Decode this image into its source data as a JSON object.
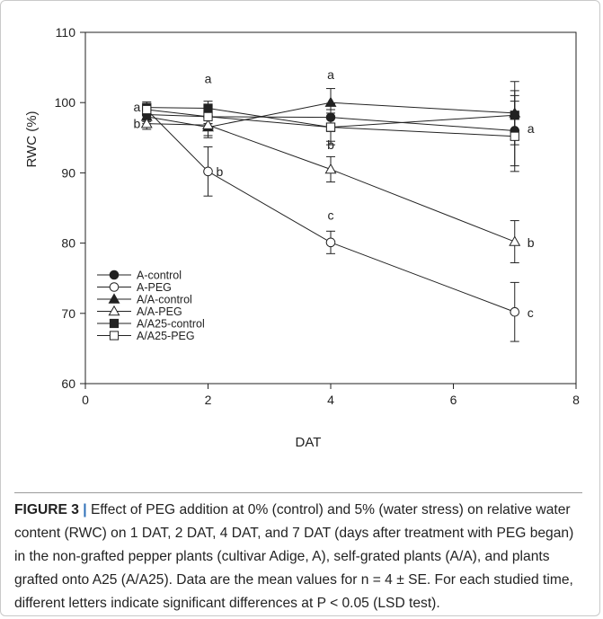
{
  "chart_data": {
    "type": "line",
    "title": "",
    "xlabel": "DAT",
    "ylabel": "RWC (%)",
    "xlim": [
      0,
      8
    ],
    "ylim": [
      60,
      110
    ],
    "x_ticks": [
      "0",
      "2",
      "4",
      "6",
      "8"
    ],
    "y_ticks": [
      "60",
      "70",
      "80",
      "90",
      "100",
      "110"
    ],
    "grid": false,
    "legend_position": "lower-left",
    "x": [
      1,
      2,
      4,
      7
    ],
    "series": [
      {
        "name": "A-control",
        "marker": "filled-circle",
        "values": [
          98.3,
          98.0,
          97.9,
          96.0
        ],
        "errors": [
          1.0,
          1.0,
          2.0,
          5.0
        ]
      },
      {
        "name": "A-PEG",
        "marker": "open-circle",
        "values": [
          99.0,
          90.2,
          80.1,
          70.2
        ],
        "errors": [
          0.8,
          3.5,
          1.6,
          4.2
        ]
      },
      {
        "name": "A/A-control",
        "marker": "filled-triangle",
        "values": [
          98.0,
          96.5,
          100.0,
          98.5
        ],
        "errors": [
          1.0,
          1.5,
          2.0,
          4.5
        ]
      },
      {
        "name": "A/A-PEG",
        "marker": "open-triangle",
        "values": [
          97.0,
          96.8,
          90.5,
          80.2
        ],
        "errors": [
          0.8,
          1.5,
          1.8,
          3.0
        ]
      },
      {
        "name": "A/A25-control",
        "marker": "filled-square",
        "values": [
          99.3,
          99.2,
          96.5,
          98.2
        ],
        "errors": [
          0.8,
          1.0,
          2.5,
          3.5
        ]
      },
      {
        "name": "A/A25-PEG",
        "marker": "open-square",
        "values": [
          99.0,
          98.0,
          96.5,
          95.2
        ],
        "errors": [
          0.8,
          1.0,
          2.0,
          5.0
        ]
      }
    ],
    "annotations": [
      {
        "text": "a",
        "x": 1,
        "y": 99.4
      },
      {
        "text": "b",
        "x": 1,
        "y": 97.0
      },
      {
        "text": "a",
        "x": 2,
        "y": 103.4
      },
      {
        "text": "b",
        "x": 2,
        "y": 90.2
      },
      {
        "text": "a",
        "x": 4,
        "y": 104.0
      },
      {
        "text": "b",
        "x": 4,
        "y": 94.0
      },
      {
        "text": "c",
        "x": 4,
        "y": 84.0
      },
      {
        "text": "a",
        "x": 7,
        "y": 96.3
      },
      {
        "text": "b",
        "x": 7,
        "y": 80.1
      },
      {
        "text": "c",
        "x": 7,
        "y": 70.1
      }
    ]
  },
  "caption": {
    "label": "FIGURE 3",
    "separator": " | ",
    "text": "Effect of PEG addition at 0% (control) and 5% (water stress) on relative water content (RWC) on 1 DAT, 2 DAT, 4 DAT, and 7 DAT (days after treatment with PEG began) in the non-grafted pepper plants (cultivar Adige, A), self-grated plants (A/A), and plants grafted onto A25 (A/A25). Data are the mean values for n = 4 ± SE. For each studied time, different letters indicate significant differences at P < 0.05 (LSD test)."
  }
}
